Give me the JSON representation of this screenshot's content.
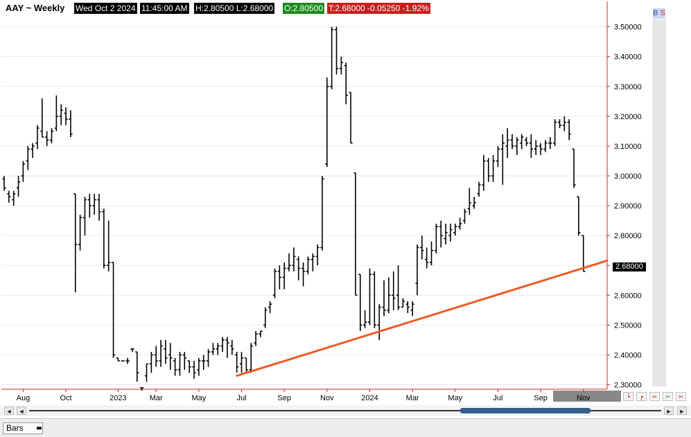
{
  "header": {
    "symbol": "AAY ~ Weekly",
    "date": "Wed Oct 2 2024",
    "time": "11:45:00 AM",
    "hl": "H:2.80500   L:2.68000",
    "open": "O:2.80500",
    "close_change": "T:2.68000   -0.05250   -1.92%"
  },
  "bs_label": {
    "b": "B",
    "s": "S"
  },
  "price_tag": "2.68000",
  "colors": {
    "background": "#ffffff",
    "bars": "#000000",
    "trendline": "#f05a28",
    "axis_line": "#cc2020",
    "open_tag": "#1c8a1c",
    "change_tag": "#c81e1e",
    "scroll_thumb": "#345d8c",
    "highlight_month": "#888888"
  },
  "toolbar": {
    "scroll_left": "◄",
    "scroll_left2": "◄",
    "scroll_right": "►",
    "scroll_right2": "►",
    "bottom_tab": "Bars",
    "bottom_tab_icon": "●●"
  },
  "chart_data": {
    "type": "bar",
    "subtype": "ohlc-weekly",
    "ylim": [
      2.285,
      3.585
    ],
    "y_ticks": [
      "2.30000",
      "2.40000",
      "2.50000",
      "2.60000",
      "2.70000",
      "2.80000",
      "2.90000",
      "3.00000",
      "3.10000",
      "3.20000",
      "3.30000",
      "3.40000",
      "3.50000"
    ],
    "x_labels": [
      "Aug",
      "Oct",
      "2023",
      "Mar",
      "May",
      "Jul",
      "Sep",
      "Nov",
      "2024",
      "Mar",
      "May",
      "Jul",
      "Sep",
      "Nov"
    ],
    "x_label_pos": [
      4,
      13,
      24,
      32,
      41,
      50,
      59,
      68,
      77,
      86,
      95,
      104,
      113,
      122
    ],
    "highlighted_label": "Nov",
    "visible_weeks": 127,
    "bars": [
      [
        2.99,
        3.0,
        2.95,
        2.96
      ],
      [
        2.94,
        2.95,
        2.91,
        2.93
      ],
      [
        2.92,
        2.95,
        2.9,
        2.94
      ],
      [
        2.96,
        3.0,
        2.93,
        2.98
      ],
      [
        3.0,
        3.05,
        2.98,
        3.04
      ],
      [
        3.05,
        3.1,
        3.02,
        3.09
      ],
      [
        3.09,
        3.11,
        3.06,
        3.1
      ],
      [
        3.11,
        3.17,
        3.09,
        3.16
      ],
      [
        3.15,
        3.26,
        3.13,
        3.13
      ],
      [
        3.13,
        3.15,
        3.1,
        3.12
      ],
      [
        3.12,
        3.16,
        3.11,
        3.15
      ],
      [
        3.16,
        3.27,
        3.15,
        3.2
      ],
      [
        3.2,
        3.24,
        3.17,
        3.22
      ],
      [
        3.21,
        3.23,
        3.17,
        3.19
      ],
      [
        3.19,
        3.22,
        3.13,
        3.14
      ],
      [
        2.94,
        2.94,
        2.61,
        2.77
      ],
      [
        2.77,
        2.87,
        2.75,
        2.86
      ],
      [
        2.86,
        2.93,
        2.8,
        2.92
      ],
      [
        2.92,
        2.94,
        2.86,
        2.9
      ],
      [
        2.9,
        2.94,
        2.87,
        2.92
      ],
      [
        2.92,
        2.94,
        2.85,
        2.88
      ],
      [
        2.88,
        2.89,
        2.69,
        2.7
      ],
      [
        2.7,
        2.85,
        2.68,
        2.71
      ],
      [
        2.71,
        2.71,
        2.39,
        2.4
      ],
      [
        2.39,
        2.39,
        2.38,
        2.38
      ],
      [
        2.38,
        2.38,
        2.38,
        2.38
      ],
      [
        2.38,
        2.39,
        2.37,
        2.38
      ],
      [
        2.42,
        2.42,
        2.41,
        2.42
      ],
      [
        2.41,
        2.41,
        2.31,
        2.34
      ],
      [
        2.29,
        2.29,
        2.28,
        2.29
      ],
      [
        2.33,
        2.37,
        2.31,
        2.37
      ],
      [
        2.37,
        2.41,
        2.34,
        2.4
      ],
      [
        2.4,
        2.43,
        2.36,
        2.38
      ],
      [
        2.38,
        2.45,
        2.36,
        2.43
      ],
      [
        2.42,
        2.45,
        2.37,
        2.39
      ],
      [
        2.4,
        2.44,
        2.35,
        2.39
      ],
      [
        2.38,
        2.39,
        2.33,
        2.35
      ],
      [
        2.35,
        2.41,
        2.33,
        2.4
      ],
      [
        2.4,
        2.41,
        2.35,
        2.39
      ],
      [
        2.38,
        2.38,
        2.34,
        2.36
      ],
      [
        2.36,
        2.38,
        2.32,
        2.34
      ],
      [
        2.35,
        2.39,
        2.33,
        2.38
      ],
      [
        2.38,
        2.4,
        2.35,
        2.38
      ],
      [
        2.38,
        2.42,
        2.36,
        2.41
      ],
      [
        2.41,
        2.44,
        2.4,
        2.42
      ],
      [
        2.42,
        2.44,
        2.4,
        2.43
      ],
      [
        2.43,
        2.46,
        2.41,
        2.45
      ],
      [
        2.45,
        2.46,
        2.39,
        2.44
      ],
      [
        2.43,
        2.45,
        2.4,
        2.42
      ],
      [
        2.4,
        2.41,
        2.34,
        2.36
      ],
      [
        2.37,
        2.41,
        2.34,
        2.39
      ],
      [
        2.39,
        2.39,
        2.34,
        2.35
      ],
      [
        2.35,
        2.44,
        2.34,
        2.43
      ],
      [
        2.44,
        2.48,
        2.43,
        2.47
      ],
      [
        2.47,
        2.48,
        2.46,
        2.48
      ],
      [
        2.5,
        2.56,
        2.49,
        2.55
      ],
      [
        2.56,
        2.58,
        2.54,
        2.57
      ],
      [
        2.6,
        2.69,
        2.59,
        2.68
      ],
      [
        2.68,
        2.7,
        2.62,
        2.66
      ],
      [
        2.66,
        2.71,
        2.62,
        2.69
      ],
      [
        2.69,
        2.74,
        2.68,
        2.7
      ],
      [
        2.7,
        2.76,
        2.68,
        2.73
      ],
      [
        2.72,
        2.73,
        2.65,
        2.69
      ],
      [
        2.69,
        2.71,
        2.63,
        2.68
      ],
      [
        2.68,
        2.73,
        2.67,
        2.72
      ],
      [
        2.72,
        2.74,
        2.68,
        2.73
      ],
      [
        2.73,
        2.77,
        2.7,
        2.76
      ],
      [
        2.76,
        3.0,
        2.75,
        2.99
      ],
      [
        3.04,
        3.33,
        3.03,
        3.3
      ],
      [
        3.3,
        3.5,
        3.29,
        3.49
      ],
      [
        3.49,
        3.5,
        3.34,
        3.36
      ],
      [
        3.36,
        3.4,
        3.34,
        3.38
      ],
      [
        3.37,
        3.38,
        3.24,
        3.27
      ],
      [
        3.28,
        3.28,
        3.11,
        3.11
      ],
      [
        3.01,
        3.01,
        2.6,
        2.6
      ],
      [
        2.67,
        2.67,
        2.48,
        2.5
      ],
      [
        2.5,
        2.55,
        2.49,
        2.51
      ],
      [
        2.51,
        2.69,
        2.5,
        2.67
      ],
      [
        2.67,
        2.68,
        2.49,
        2.5
      ],
      [
        2.5,
        2.57,
        2.45,
        2.56
      ],
      [
        2.56,
        2.65,
        2.53,
        2.55
      ],
      [
        2.55,
        2.66,
        2.54,
        2.6
      ],
      [
        2.6,
        2.68,
        2.55,
        2.59
      ],
      [
        2.6,
        2.7,
        2.55,
        2.56
      ],
      [
        2.56,
        2.59,
        2.56,
        2.58
      ],
      [
        2.57,
        2.58,
        2.54,
        2.56
      ],
      [
        2.55,
        2.58,
        2.53,
        2.57
      ],
      [
        2.64,
        2.77,
        2.6,
        2.76
      ],
      [
        2.76,
        2.8,
        2.72,
        2.75
      ],
      [
        2.72,
        2.76,
        2.69,
        2.71
      ],
      [
        2.71,
        2.78,
        2.7,
        2.75
      ],
      [
        2.75,
        2.84,
        2.74,
        2.83
      ],
      [
        2.83,
        2.85,
        2.76,
        2.8
      ],
      [
        2.79,
        2.84,
        2.77,
        2.81
      ],
      [
        2.8,
        2.84,
        2.78,
        2.82
      ],
      [
        2.81,
        2.84,
        2.8,
        2.83
      ],
      [
        2.83,
        2.86,
        2.82,
        2.84
      ],
      [
        2.85,
        2.89,
        2.84,
        2.88
      ],
      [
        2.89,
        2.96,
        2.87,
        2.91
      ],
      [
        2.9,
        2.93,
        2.89,
        2.91
      ],
      [
        2.94,
        2.98,
        2.93,
        2.97
      ],
      [
        2.97,
        3.07,
        2.95,
        3.05
      ],
      [
        3.05,
        3.06,
        2.98,
        3.0
      ],
      [
        3.0,
        3.07,
        2.98,
        3.05
      ],
      [
        3.05,
        3.1,
        3.03,
        3.09
      ],
      [
        3.09,
        3.14,
        2.97,
        3.11
      ],
      [
        3.1,
        3.16,
        3.06,
        3.12
      ],
      [
        3.12,
        3.14,
        3.09,
        3.1
      ],
      [
        3.1,
        3.13,
        3.07,
        3.12
      ],
      [
        3.11,
        3.14,
        3.09,
        3.13
      ],
      [
        3.12,
        3.13,
        3.1,
        3.11
      ],
      [
        3.11,
        3.14,
        3.06,
        3.09
      ],
      [
        3.09,
        3.12,
        3.07,
        3.1
      ],
      [
        3.1,
        3.11,
        3.07,
        3.09
      ],
      [
        3.09,
        3.12,
        3.08,
        3.11
      ],
      [
        3.11,
        3.13,
        3.09,
        3.11
      ],
      [
        3.11,
        3.19,
        3.1,
        3.18
      ],
      [
        3.18,
        3.19,
        3.16,
        3.17
      ],
      [
        3.17,
        3.2,
        3.15,
        3.18
      ],
      [
        3.18,
        3.19,
        3.12,
        3.14
      ],
      [
        3.09,
        3.09,
        2.96,
        2.97
      ],
      [
        2.93,
        2.93,
        2.8,
        2.81
      ],
      [
        2.8,
        2.8,
        2.68,
        2.68
      ]
    ],
    "trendline": {
      "from": [
        49,
        2.33
      ],
      "to": [
        127,
        2.716
      ]
    }
  }
}
